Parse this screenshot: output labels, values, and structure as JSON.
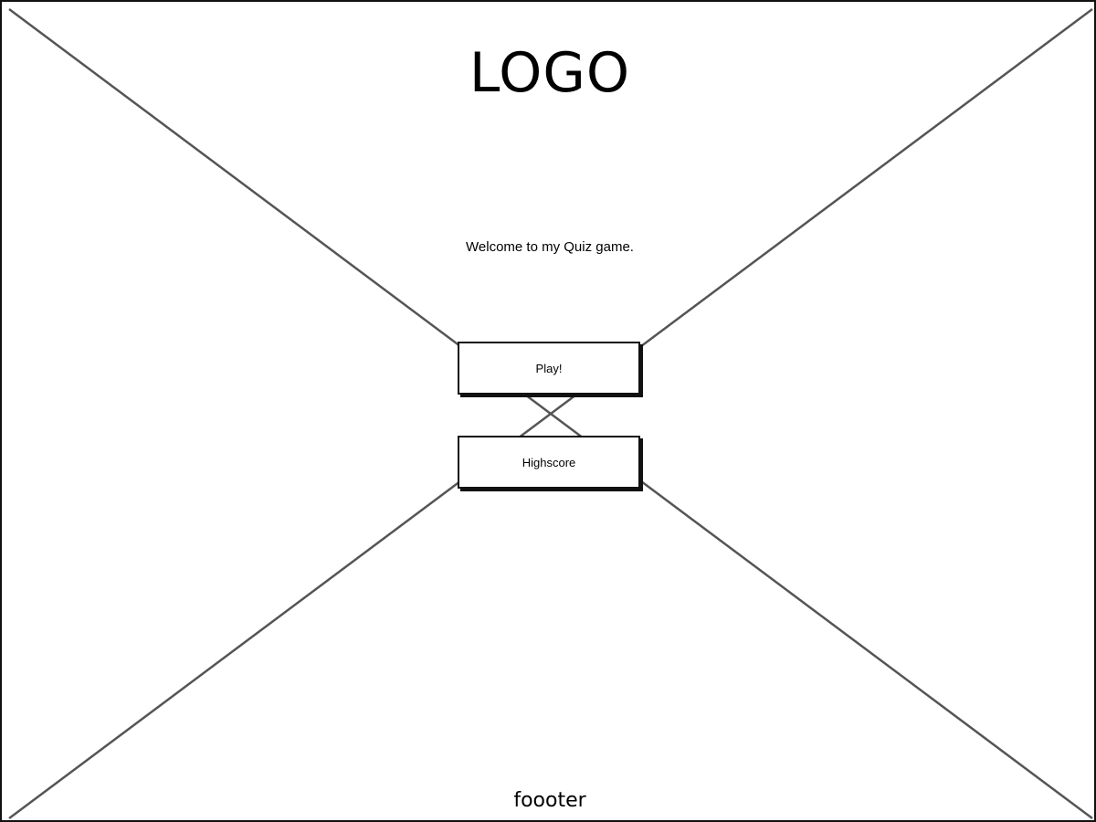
{
  "header": {
    "logo_text": "LOGO"
  },
  "main": {
    "welcome_text": "Welcome to my Quiz game.",
    "buttons": {
      "play_label": "Play!",
      "highscore_label": "Highscore"
    }
  },
  "footer": {
    "text": "foooter"
  }
}
